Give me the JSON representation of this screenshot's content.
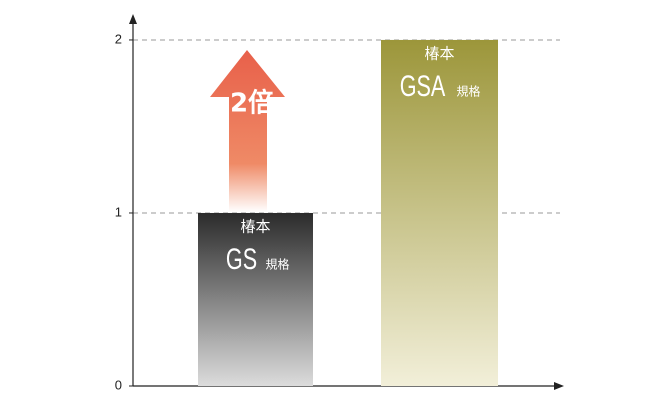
{
  "chart_data": {
    "type": "bar",
    "values": [
      1,
      2
    ],
    "colors": [
      "#2b2b2b",
      "#9c963a"
    ],
    "bar_labels": [
      {
        "maker": "椿本",
        "name": "GS",
        "suffix": "規格"
      },
      {
        "maker": "椿本",
        "name": "GSA",
        "suffix": "規格"
      }
    ],
    "annotation": "2倍",
    "annotation_color": "#e8604a",
    "ylim": [
      0,
      2.15
    ],
    "yticks": [
      0,
      1,
      2
    ],
    "grid": true
  }
}
